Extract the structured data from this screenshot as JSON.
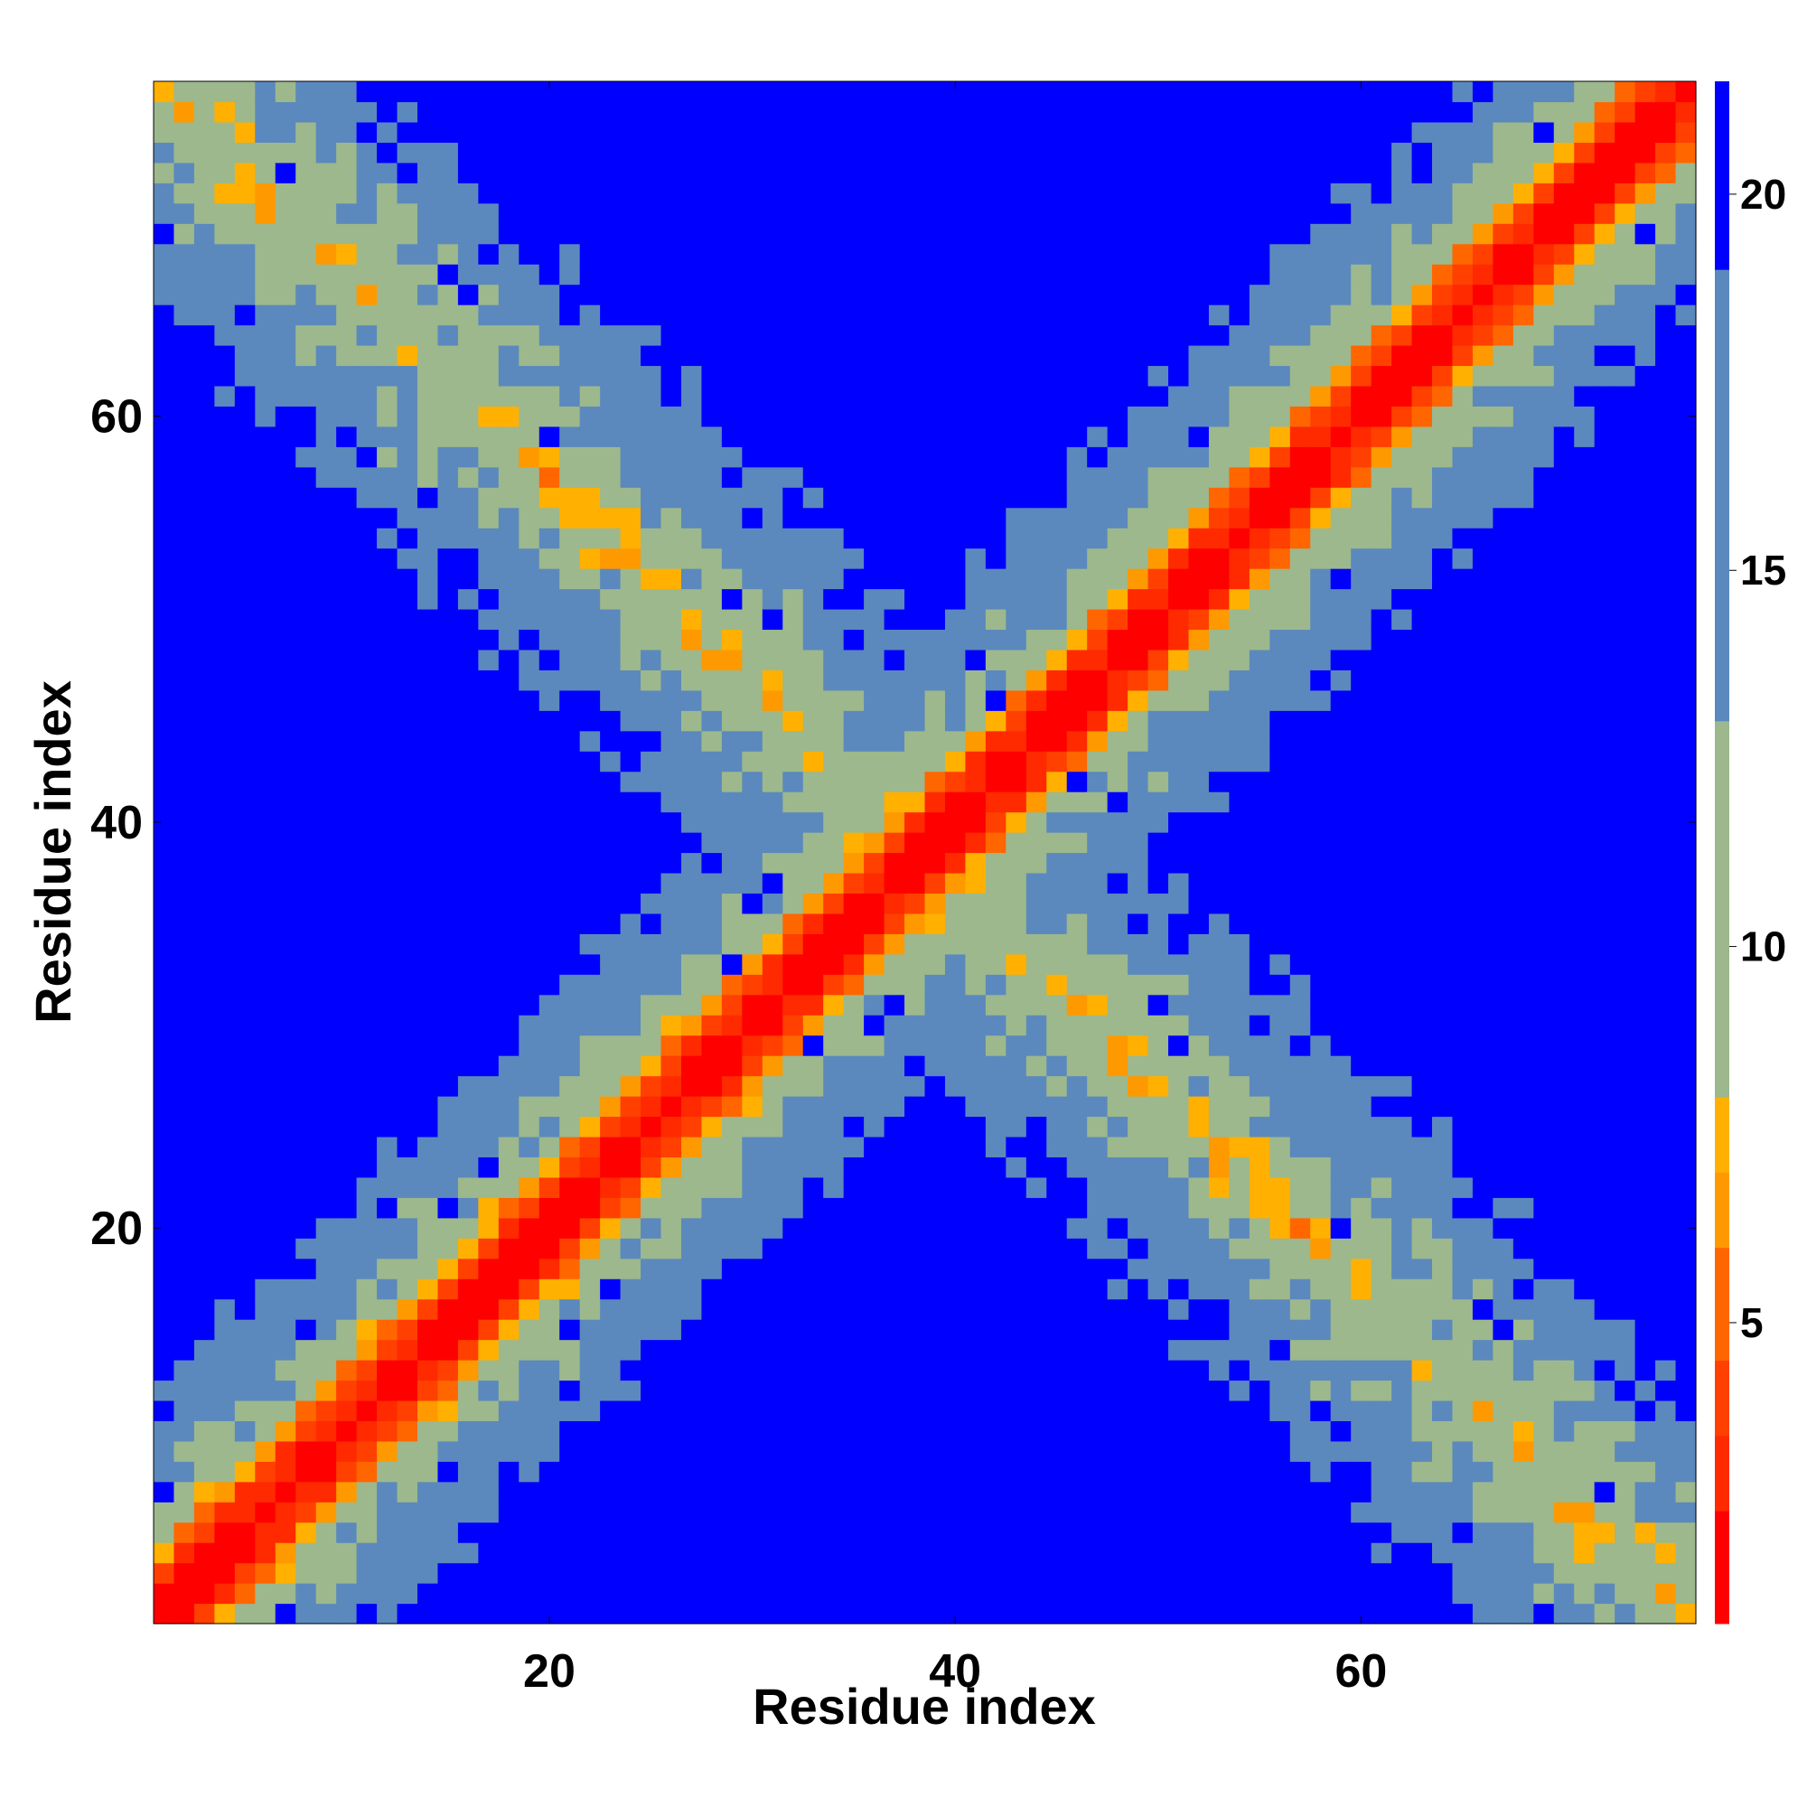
{
  "chart_data": {
    "type": "heatmap",
    "description_of_values": "pairwise residue contact map",
    "xlabel": "Residue index",
    "ylabel": "Residue index",
    "x_range": [
      1,
      76
    ],
    "y_range": [
      1,
      76
    ],
    "x_ticks": [
      "20",
      "40",
      "60"
    ],
    "y_ticks": [
      "20",
      "40",
      "60"
    ],
    "colorbar": {
      "ticks": [
        "5",
        "10",
        "15",
        "20"
      ],
      "range": [
        1,
        21.5
      ],
      "boundaries": [
        1,
        2.5,
        3.5,
        4.5,
        6,
        7,
        8,
        13,
        19,
        21.5
      ],
      "colors": [
        "#ff0000",
        "#ff2a00",
        "#ff4000",
        "#ff6600",
        "#ff9900",
        "#ffb000",
        "#9db88c",
        "#5b89bd",
        "#0000ff"
      ]
    },
    "structure": {
      "main_diagonal": "red band along i = j (values ~1-3)",
      "near_diagonal": "orange band |i-j| = 1-3 (values ~4-7)",
      "off_diagonal_arms": "green/blue scattered contacts forming an X shape along i + j ≈ 77"
    }
  }
}
